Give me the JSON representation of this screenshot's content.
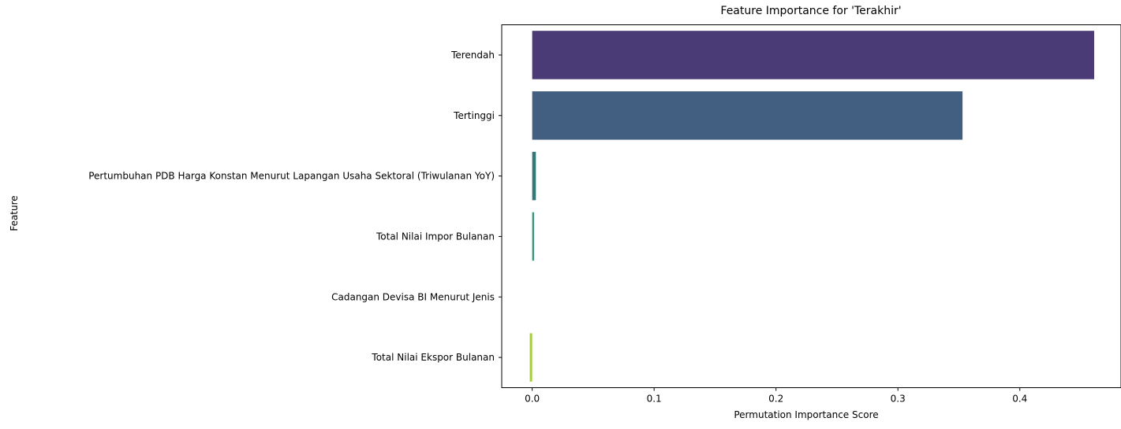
{
  "chart_data": {
    "type": "bar",
    "orientation": "horizontal",
    "title": "Feature Importance for 'Terakhir'",
    "xlabel": "Permutation Importance Score",
    "ylabel": "Feature",
    "xlim": [
      -0.025,
      0.483
    ],
    "xticks": [
      0.0,
      0.1,
      0.2,
      0.3,
      0.4
    ],
    "xtick_labels": [
      "0.0",
      "0.1",
      "0.2",
      "0.3",
      "0.4"
    ],
    "grid": false,
    "categories": [
      "Terendah",
      "Tertinggi",
      "Pertumbuhan PDB Harga Konstan Menurut Lapangan Usaha Sektoral (Triwulanan YoY)",
      "Total Nilai Impor Bulanan",
      "Cadangan Devisa BI Menurut Jenis",
      "Total Nilai Ekspor Bulanan"
    ],
    "values": [
      0.461,
      0.353,
      0.003,
      0.0015,
      0.0,
      -0.002
    ],
    "colors": [
      "#4a3a76",
      "#425f82",
      "#34787a",
      "#36987a",
      "#5fbd63",
      "#a8cf3e"
    ]
  }
}
